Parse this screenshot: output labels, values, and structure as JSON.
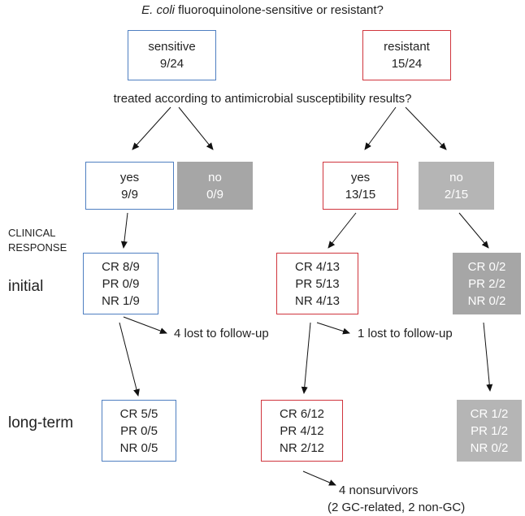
{
  "header": {
    "question_italic": "E. coli",
    "question_rest": " fluoroquinolone-sensitive or resistant?"
  },
  "groups": {
    "sensitive": {
      "label": "sensitive",
      "count": "9/24"
    },
    "resistant": {
      "label": "resistant",
      "count": "15/24"
    }
  },
  "treatment_question": "treated according to antimicrobial susceptibility results?",
  "treatment": {
    "sens_yes": {
      "label": "yes",
      "count": "9/9"
    },
    "sens_no": {
      "label": "no",
      "count": "0/9"
    },
    "res_yes": {
      "label": "yes",
      "count": "13/15"
    },
    "res_no": {
      "label": "no",
      "count": "2/15"
    }
  },
  "clinical_response_label": {
    "line1": "CLINICAL",
    "line2": "RESPONSE"
  },
  "stages": {
    "initial": "initial",
    "long_term": "long-term"
  },
  "initial": {
    "sens_yes": [
      "CR 8/9",
      "PR 0/9",
      "NR 1/9"
    ],
    "res_yes": [
      "CR 4/13",
      "PR 5/13",
      "NR 4/13"
    ],
    "res_no": [
      "CR 0/2",
      "PR 2/2",
      "NR 0/2"
    ]
  },
  "lost": {
    "sens": "4 lost to follow-up",
    "res": "1 lost to follow-up"
  },
  "long_term": {
    "sens_yes": [
      "CR 5/5",
      "PR 0/5",
      "NR 0/5"
    ],
    "res_yes": [
      "CR 6/12",
      "PR 4/12",
      "NR 2/12"
    ],
    "res_no": [
      "CR 1/2",
      "PR 1/2",
      "NR 0/2"
    ]
  },
  "nonsurvivors": {
    "line1": "4 nonsurvivors",
    "line2": "(2 GC-related, 2 non-GC)"
  },
  "colors": {
    "sensitive_border": "#4f7fc1",
    "resistant_border": "#d0353d",
    "not_treated_fill": "#a6a6a6"
  }
}
